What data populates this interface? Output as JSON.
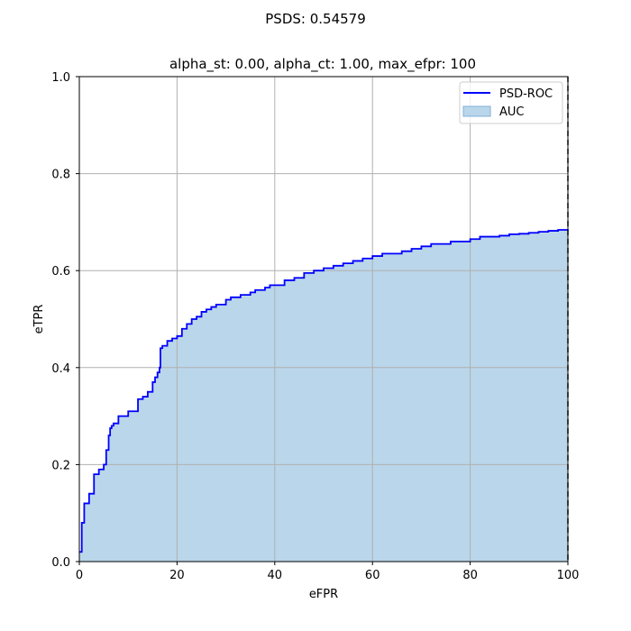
{
  "chart_data": {
    "type": "line",
    "suptitle": "PSDS: 0.54579",
    "title": "alpha_st: 0.00, alpha_ct: 1.00, max_efpr: 100",
    "xlabel": "eFPR",
    "ylabel": "eTPR",
    "xlim": [
      0,
      100
    ],
    "ylim": [
      0,
      1.0
    ],
    "xticks": [
      0,
      20,
      40,
      60,
      80,
      100
    ],
    "xtick_labels": [
      "0",
      "20",
      "40",
      "60",
      "80",
      "100"
    ],
    "yticks": [
      0,
      0.2,
      0.4,
      0.6,
      0.8,
      1.0
    ],
    "ytick_labels": [
      "0.0",
      "0.2",
      "0.4",
      "0.6",
      "0.8",
      "1.0"
    ],
    "grid": true,
    "legend_position": "top-right",
    "reference_line": {
      "x": 100,
      "style": "dashed",
      "color": "#000000"
    },
    "series": [
      {
        "name": "PSD-ROC",
        "style": "step",
        "color": "#0000ff",
        "x": [
          0,
          0.5,
          1,
          2,
          3,
          4,
          5,
          5.5,
          6,
          6.3,
          6.6,
          7,
          8,
          9,
          10,
          11,
          12,
          13,
          14,
          15,
          15.5,
          16,
          16.4,
          16.6,
          17,
          18,
          19,
          20,
          21,
          22,
          23,
          24,
          25,
          26,
          27,
          28,
          29,
          30,
          31,
          32,
          33,
          34,
          35,
          36,
          37,
          38,
          39,
          40,
          42,
          44,
          46,
          48,
          50,
          52,
          54,
          56,
          58,
          60,
          62,
          64,
          66,
          68,
          70,
          72,
          74,
          76,
          78,
          80,
          82,
          84,
          86,
          88,
          90,
          92,
          94,
          96,
          98,
          100
        ],
        "y": [
          0.02,
          0.08,
          0.12,
          0.14,
          0.18,
          0.19,
          0.2,
          0.23,
          0.26,
          0.275,
          0.28,
          0.285,
          0.3,
          0.3,
          0.31,
          0.31,
          0.335,
          0.34,
          0.35,
          0.37,
          0.38,
          0.39,
          0.4,
          0.44,
          0.445,
          0.455,
          0.46,
          0.465,
          0.48,
          0.49,
          0.5,
          0.505,
          0.515,
          0.52,
          0.525,
          0.53,
          0.53,
          0.54,
          0.545,
          0.545,
          0.55,
          0.55,
          0.555,
          0.56,
          0.56,
          0.565,
          0.57,
          0.57,
          0.58,
          0.585,
          0.595,
          0.6,
          0.605,
          0.61,
          0.615,
          0.62,
          0.625,
          0.63,
          0.635,
          0.635,
          0.64,
          0.645,
          0.65,
          0.655,
          0.655,
          0.66,
          0.66,
          0.665,
          0.67,
          0.67,
          0.672,
          0.675,
          0.676,
          0.678,
          0.68,
          0.682,
          0.684,
          0.685
        ]
      },
      {
        "name": "AUC",
        "style": "area",
        "color": "#bad6ea",
        "edge_color": "#7fb0d8"
      }
    ]
  }
}
